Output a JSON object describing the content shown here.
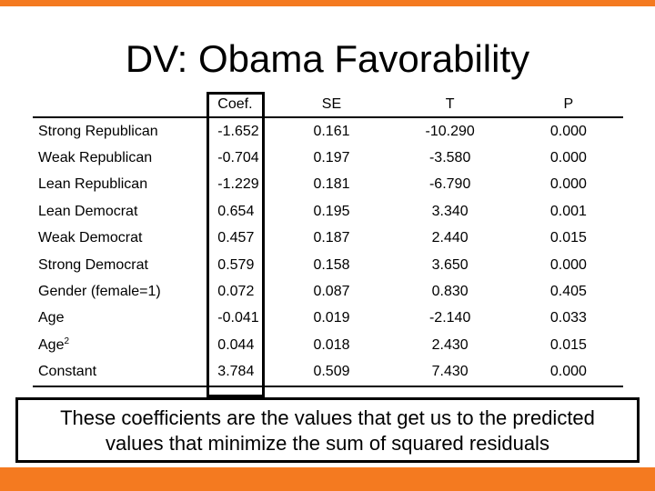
{
  "title": "DV: Obama Favorability",
  "table": {
    "headers": [
      "",
      "Coef.",
      "SE",
      "T",
      "P"
    ],
    "rows": [
      {
        "label": "Strong Republican",
        "coef": "-1.652",
        "se": "0.161",
        "t": "-10.290",
        "p": "0.000"
      },
      {
        "label": "Weak Republican",
        "coef": "-0.704",
        "se": "0.197",
        "t": "-3.580",
        "p": "0.000"
      },
      {
        "label": "Lean Republican",
        "coef": "-1.229",
        "se": "0.181",
        "t": "-6.790",
        "p": "0.000"
      },
      {
        "label": "Lean Democrat",
        "coef": "0.654",
        "se": "0.195",
        "t": "3.340",
        "p": "0.001"
      },
      {
        "label": "Weak Democrat",
        "coef": "0.457",
        "se": "0.187",
        "t": "2.440",
        "p": "0.015"
      },
      {
        "label": "Strong Democrat",
        "coef": "0.579",
        "se": "0.158",
        "t": "3.650",
        "p": "0.000"
      },
      {
        "label": "Gender (female=1)",
        "coef": "0.072",
        "se": "0.087",
        "t": "0.830",
        "p": "0.405"
      },
      {
        "label": "Age",
        "coef": "-0.041",
        "se": "0.019",
        "t": "-2.140",
        "p": "0.033"
      },
      {
        "label": "Age",
        "label_sup": "2",
        "coef": "0.044",
        "se": "0.018",
        "t": "2.430",
        "p": "0.015"
      },
      {
        "label": "Constant",
        "coef": "3.784",
        "se": "0.509",
        "t": "7.430",
        "p": "0.000"
      }
    ]
  },
  "callout": {
    "line1": "These coefficients are the values that get us to the predicted",
    "line2": "values that minimize the sum of squared residuals"
  },
  "colors": {
    "accent_bar": "#f47a20",
    "text": "#000000",
    "background": "#ffffff"
  }
}
